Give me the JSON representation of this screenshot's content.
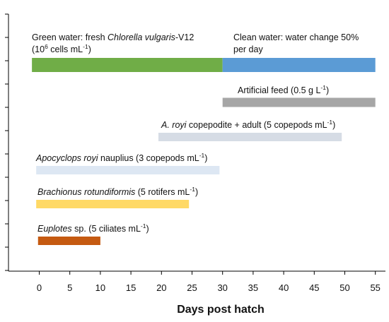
{
  "chart_data": {
    "type": "timeline",
    "xlabel": "Days post hatch",
    "xlim": [
      -1,
      55
    ],
    "xticks": [
      "0",
      "5",
      "10",
      "15",
      "20",
      "25",
      "30",
      "35",
      "40",
      "45",
      "50",
      "55"
    ],
    "series": [
      {
        "id": "green-water",
        "label_parts": [
          {
            "text": "Green water: fresh "
          },
          {
            "text": "Chlorella vulgaris",
            "italic": true
          },
          {
            "text": "-V12"
          }
        ],
        "label_line2_parts": [
          {
            "text": "(10"
          },
          {
            "text": "6",
            "sup": true
          },
          {
            "text": " cells mL"
          },
          {
            "text": "-1",
            "sup": true
          },
          {
            "text": ")"
          }
        ],
        "start": -1.2,
        "end": 30,
        "color": "#70ad47"
      },
      {
        "id": "clean-water",
        "label_parts": [
          {
            "text": "Clean water: water change 50%"
          }
        ],
        "label_line2_parts": [
          {
            "text": "per day"
          }
        ],
        "start": 30,
        "end": 55,
        "color": "#5b9bd5"
      },
      {
        "id": "artificial-feed",
        "label_parts": [
          {
            "text": "Artificial feed (0.5 g L"
          },
          {
            "text": "-1",
            "sup": true
          },
          {
            "text": ")"
          }
        ],
        "start": 30,
        "end": 55,
        "color": "#a6a6a6"
      },
      {
        "id": "copepodite-adult",
        "label_parts": [
          {
            "text": "A. royi",
            "italic": true
          },
          {
            "text": " copepodite + adult (5 copepods mL"
          },
          {
            "text": "-1",
            "sup": true
          },
          {
            "text": ")"
          }
        ],
        "start": 19.5,
        "end": 49.5,
        "color": "#d6dce5"
      },
      {
        "id": "nauplius",
        "label_parts": [
          {
            "text": "Apocyclops royi",
            "italic": true
          },
          {
            "text": " nauplius (3 copepods mL"
          },
          {
            "text": "-1",
            "sup": true
          },
          {
            "text": ")"
          }
        ],
        "start": -0.5,
        "end": 29.5,
        "color": "#dde7f3"
      },
      {
        "id": "rotifers",
        "label_parts": [
          {
            "text": "Brachionus rotundiformis",
            "italic": true
          },
          {
            "text": " (5 rotifers mL"
          },
          {
            "text": "-1",
            "sup": true
          },
          {
            "text": ")"
          }
        ],
        "start": -0.5,
        "end": 24.5,
        "color": "#ffd966"
      },
      {
        "id": "ciliates",
        "label_parts": [
          {
            "text": "Euplotes",
            "italic": true
          },
          {
            "text": " sp. (5 ciliates mL"
          },
          {
            "text": "-1",
            "sup": true
          },
          {
            "text": ")"
          }
        ],
        "start": -0.2,
        "end": 10,
        "color": "#c55a11"
      }
    ],
    "grid": false,
    "legend": "none"
  }
}
